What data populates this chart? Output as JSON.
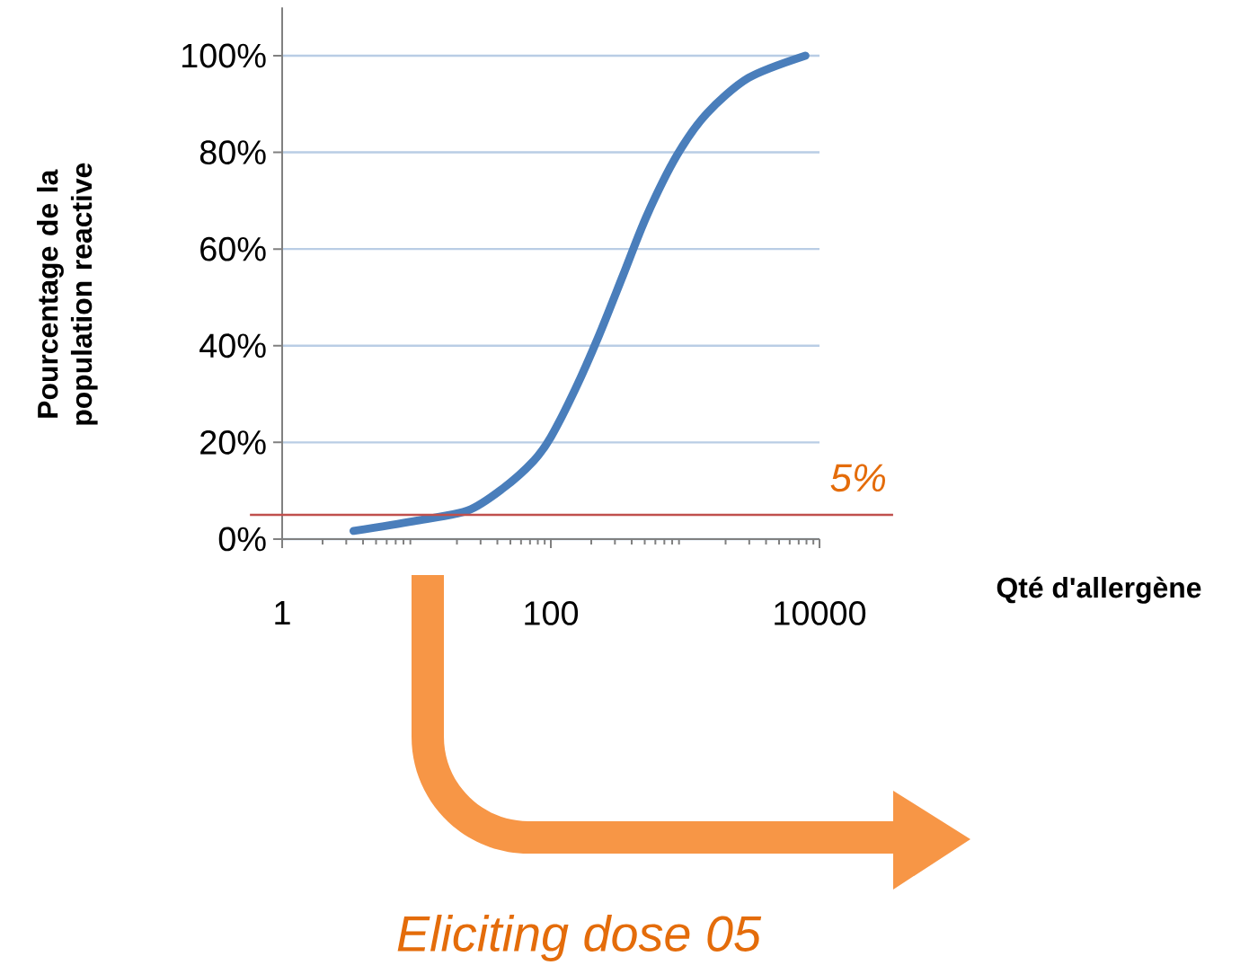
{
  "chart_data": {
    "type": "line",
    "xlabel": "Qté d'allergène",
    "ylabel": "Pourcentage de la population reactive",
    "x": [
      3.4,
      9.5,
      24,
      44,
      74,
      100,
      152,
      228,
      344,
      518,
      865,
      1445,
      2960,
      7850
    ],
    "series": [
      {
        "color": "#4a7ebb",
        "values": [
          1.7,
          3.7,
          5.9,
          10.5,
          16.1,
          21.1,
          31,
          42.1,
          54.5,
          66.9,
          79.3,
          88,
          95.4,
          100
        ]
      }
    ],
    "xlim": [
      1,
      10000
    ],
    "ylim": [
      0,
      110
    ],
    "xticks": [
      1,
      100,
      10000
    ],
    "yticks": [
      {
        "value": 0,
        "label": "0%"
      },
      {
        "value": 20,
        "label": "20%"
      },
      {
        "value": 40,
        "label": "40%"
      },
      {
        "value": 60,
        "label": "60%"
      },
      {
        "value": 80,
        "label": "80%"
      },
      {
        "value": 100,
        "label": "100%"
      }
    ],
    "log": "x",
    "grid": "y",
    "ref_lines": [
      {
        "axis": "y",
        "value": 5,
        "label": "5%",
        "color": "#c0504d"
      }
    ],
    "annotations": [
      "Eliciting dose 05"
    ]
  }
}
